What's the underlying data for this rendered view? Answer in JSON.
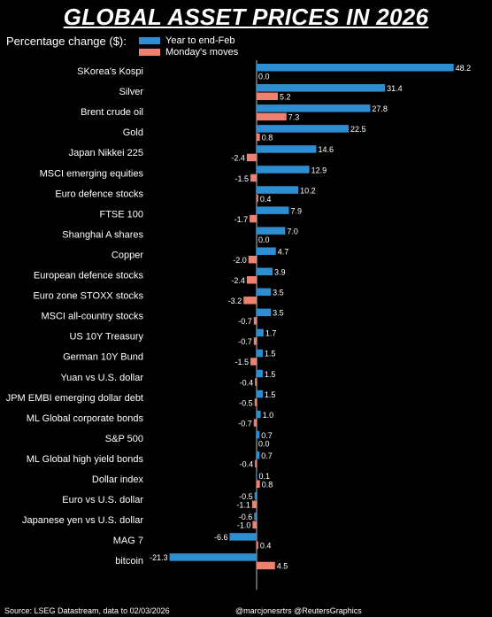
{
  "header": {
    "title": "GLOBAL ASSET PRICES IN 2026",
    "subtitle": "Percentage change ($):"
  },
  "footer": {
    "source": "Source: LSEG Datastream, data to 02/03/2026",
    "credit": "@marcjonesrtrs @ReutersGraphics"
  },
  "colors": {
    "year_series": "#2d8fd1",
    "monday_series": "#f08070",
    "background": "#000000"
  },
  "chart_data": {
    "type": "bar",
    "orientation": "horizontal",
    "categories": [
      "SKorea's Kospi",
      "Silver",
      "Brent crude oil",
      "Gold",
      "Japan Nikkei 225",
      "MSCI emerging equities",
      "Euro defence stocks",
      "FTSE 100",
      "Shanghai A shares",
      "Copper",
      "European defence stocks",
      "Euro zone STOXX stocks",
      "MSCI all-country stocks",
      "US 10Y Treasury",
      "German 10Y Bund",
      "Yuan vs U.S. dollar",
      "JPM EMBI emerging dollar debt",
      "ML Global corporate bonds",
      "S&P 500",
      "ML Global high yield bonds",
      "Dollar index",
      "Euro vs U.S. dollar",
      "Japanese yen vs U.S. dollar",
      "MAG 7",
      "bitcoin"
    ],
    "series": [
      {
        "name": "Year to end-Feb",
        "values": [
          48.2,
          31.4,
          27.8,
          22.5,
          14.6,
          12.9,
          10.2,
          7.9,
          7.0,
          4.7,
          3.9,
          3.5,
          3.5,
          1.7,
          1.5,
          1.5,
          1.5,
          1.0,
          0.7,
          0.7,
          0.1,
          -0.5,
          -0.6,
          -6.6,
          -21.3
        ],
        "labels": [
          "48.2",
          "31.4",
          "27.8",
          "22.5",
          "14.6",
          "12.9",
          "10.2",
          "7.9",
          "7.0",
          "4.7",
          "3.9",
          "3.5",
          "3.5",
          "1.7",
          "1.5",
          "1.5",
          "1.5",
          "1.0",
          "0.7",
          "0.7",
          "0.1",
          "-0.5",
          "-0.6",
          "-6.6",
          "-21.3"
        ]
      },
      {
        "name": "Monday's moves",
        "values": [
          0.0,
          5.2,
          7.3,
          0.8,
          -2.4,
          -1.5,
          0.4,
          -1.7,
          0.0,
          -2.0,
          -2.4,
          -3.2,
          -0.7,
          -0.7,
          -1.5,
          -0.4,
          -0.5,
          -0.7,
          0.0,
          -0.4,
          0.8,
          -1.1,
          -1.0,
          0.4,
          4.5
        ],
        "labels": [
          "0.0",
          "5.2",
          "7.3",
          "0.8",
          "-2.4",
          "-1.5",
          "0.4",
          "-1.7",
          "0.0",
          "-2.0",
          "-2.4",
          "-3.2",
          "-0.7",
          "-0.7",
          "-1.5",
          "-0.4",
          "-0.5",
          "-0.7",
          "0.0",
          "-0.4",
          "0.8",
          "-1.1",
          "-1.0",
          "0.4",
          "4.5"
        ]
      }
    ]
  }
}
